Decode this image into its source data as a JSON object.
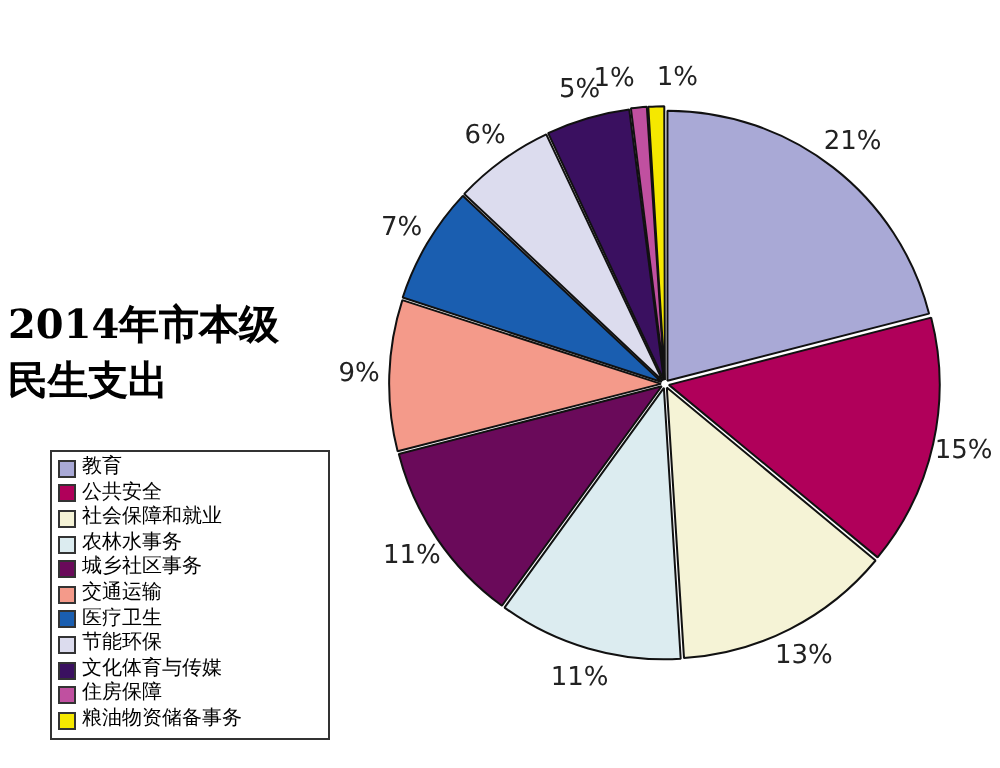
{
  "chart_data": {
    "type": "pie",
    "title": "2014年市本级民生支出",
    "categories": [
      "教育",
      "公共安全",
      "社会保障和就业",
      "农林水事务",
      "城乡社区事务",
      "交通运输",
      "医疗卫生",
      "节能环保",
      "文化体育与传媒",
      "住房保障",
      "粮油物资储备事务"
    ],
    "values": [
      21,
      15,
      13,
      11,
      11,
      9,
      7,
      6,
      5,
      1,
      1
    ],
    "value_labels": [
      "21%",
      "15%",
      "13%",
      "11%",
      "11%",
      "9%",
      "7%",
      "6%",
      "5%",
      "1%",
      "1%"
    ],
    "colors": [
      "#a9a9d6",
      "#b0005a",
      "#f5f3d6",
      "#dcecf0",
      "#6a0a5a",
      "#f49a8a",
      "#1a5eb0",
      "#dcdcee",
      "#3a1060",
      "#c050a0",
      "#f5e800"
    ],
    "legend": "bottom left"
  }
}
